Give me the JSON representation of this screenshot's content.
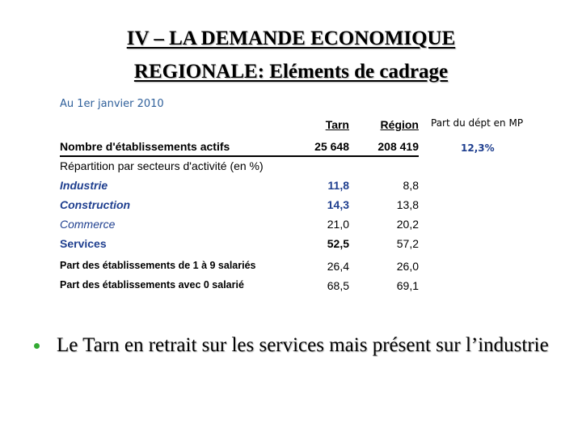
{
  "title": {
    "line1": "IV – LA DEMANDE ECONOMIQUE",
    "line2": "REGIONALE: Eléments de cadrage"
  },
  "table": {
    "subtitle": "Au 1er janvier 2010",
    "headers": {
      "tarn": "Tarn",
      "region": "Région",
      "part": "Part du dépt en MP"
    },
    "rows": [
      {
        "label": "Nombre d'établissements actifs",
        "tarn": "25 648",
        "region": "208 419",
        "part": "12,3%"
      },
      {
        "label": "Répartition par secteurs d'activité (en %)",
        "tarn": "",
        "region": ""
      },
      {
        "label": "Industrie",
        "tarn": "11,8",
        "region": "8,8"
      },
      {
        "label": "Construction",
        "tarn": "14,3",
        "region": "13,8"
      },
      {
        "label": "Commerce",
        "tarn": "21,0",
        "region": "20,2"
      },
      {
        "label": "Services",
        "tarn": "52,5",
        "region": "57,2"
      },
      {
        "label": "Part des établissements de 1 à 9 salariés",
        "tarn": "26,4",
        "region": "26,0"
      },
      {
        "label": "Part des établissements avec 0 salarié",
        "tarn": "68,5",
        "region": "69,1"
      }
    ]
  },
  "bullet": {
    "text": "Le Tarn en retrait sur les services mais présent sur l’industrie"
  },
  "colors": {
    "accent_blue": "#1f3f8f",
    "subtitle_blue": "#2e5f9a",
    "bullet_green": "#33aa33"
  }
}
